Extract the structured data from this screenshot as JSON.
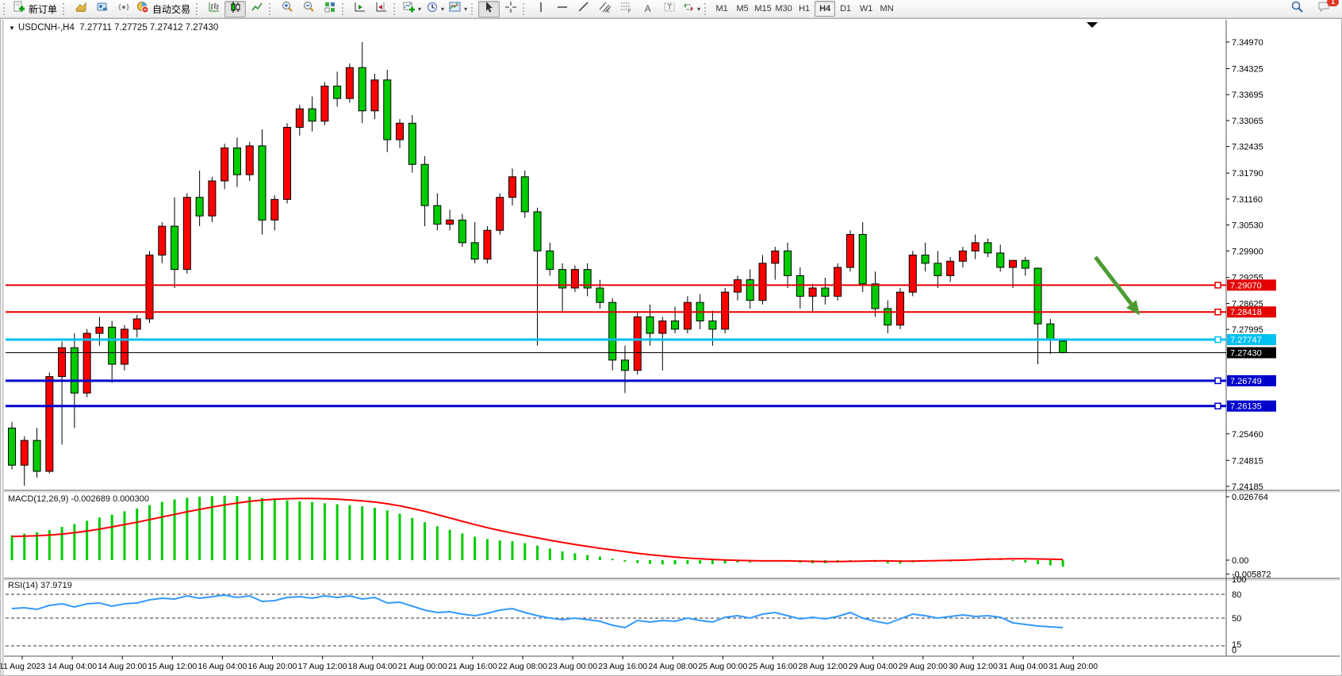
{
  "toolbar": {
    "new_order_label": "新订单",
    "auto_trading_label": "自动交易",
    "timeframes": [
      "M1",
      "M5",
      "M15",
      "M30",
      "H1",
      "H4",
      "D1",
      "W1",
      "MN"
    ],
    "active_timeframe": "H4",
    "notification_count": "1"
  },
  "chart": {
    "title_symbol": "USDCNH-,H4",
    "title_ohlc": "7.27711 7.27725 7.27412 7.27430",
    "macd_label": "MACD(12,26,9) -0.002689 0.000300",
    "rsi_label": "RSI(14) 37.9719"
  },
  "chart_data": {
    "type": "candlestick",
    "symbol": "USDCNH-",
    "period": "H4",
    "convention": "red-up-green-down",
    "current_ohlc": {
      "open": "7.27711",
      "high": "7.27725",
      "low": "7.27412",
      "close": "7.27430"
    },
    "price_axis_labels": [
      "7.34970",
      "7.34325",
      "7.33695",
      "7.33065",
      "7.32435",
      "7.31790",
      "7.31160",
      "7.30530",
      "7.29900",
      "7.29255",
      "7.28625",
      "7.27995",
      "7.25460",
      "7.24815",
      "7.24185"
    ],
    "price_axis_range": [
      7.24185,
      7.3497
    ],
    "time_labels": [
      "11 Aug 2023",
      "14 Aug 04:00",
      "14 Aug 20:00",
      "15 Aug 12:00",
      "16 Aug 04:00",
      "16 Aug 20:00",
      "17 Aug 12:00",
      "18 Aug 04:00",
      "21 Aug 00:00",
      "21 Aug 16:00",
      "22 Aug 08:00",
      "23 Aug 00:00",
      "23 Aug 16:00",
      "24 Aug 08:00",
      "25 Aug 00:00",
      "25 Aug 16:00",
      "28 Aug 12:00",
      "29 Aug 04:00",
      "29 Aug 20:00",
      "30 Aug 12:00",
      "31 Aug 04:00",
      "31 Aug 20:00"
    ],
    "candles": [
      [
        7.256,
        7.2575,
        7.246,
        7.247
      ],
      [
        7.247,
        7.254,
        7.242,
        7.253
      ],
      [
        7.253,
        7.256,
        7.244,
        7.2455
      ],
      [
        7.2455,
        7.2695,
        7.245,
        7.2685
      ],
      [
        7.2685,
        7.277,
        7.252,
        7.2755
      ],
      [
        7.2755,
        7.279,
        7.256,
        7.2645
      ],
      [
        7.2645,
        7.28,
        7.2635,
        7.279
      ],
      [
        7.279,
        7.283,
        7.276,
        7.2805
      ],
      [
        7.2805,
        7.282,
        7.267,
        7.2715
      ],
      [
        7.2715,
        7.281,
        7.27,
        7.28
      ],
      [
        7.28,
        7.2835,
        7.278,
        7.2825
      ],
      [
        7.2825,
        7.299,
        7.2815,
        7.298
      ],
      [
        7.298,
        7.306,
        7.296,
        7.305
      ],
      [
        7.305,
        7.312,
        7.29,
        7.2945
      ],
      [
        7.2945,
        7.313,
        7.2935,
        7.312
      ],
      [
        7.312,
        7.3185,
        7.305,
        7.3075
      ],
      [
        7.3075,
        7.317,
        7.306,
        7.316
      ],
      [
        7.316,
        7.325,
        7.314,
        7.324
      ],
      [
        7.324,
        7.3265,
        7.3145,
        7.3175
      ],
      [
        7.3175,
        7.3255,
        7.316,
        7.3245
      ],
      [
        7.3245,
        7.3285,
        7.303,
        7.3065
      ],
      [
        7.3065,
        7.3125,
        7.304,
        7.3115
      ],
      [
        7.3115,
        7.33,
        7.3105,
        7.329
      ],
      [
        7.329,
        7.3345,
        7.327,
        7.3335
      ],
      [
        7.3335,
        7.3365,
        7.328,
        7.3305
      ],
      [
        7.3305,
        7.34,
        7.3295,
        7.339
      ],
      [
        7.339,
        7.3425,
        7.334,
        7.336
      ],
      [
        7.336,
        7.3445,
        7.335,
        7.3435
      ],
      [
        7.3435,
        7.3497,
        7.33,
        7.333
      ],
      [
        7.333,
        7.342,
        7.331,
        7.3405
      ],
      [
        7.3405,
        7.343,
        7.323,
        7.326
      ],
      [
        7.326,
        7.331,
        7.324,
        7.33
      ],
      [
        7.33,
        7.332,
        7.318,
        7.32
      ],
      [
        7.32,
        7.322,
        7.305,
        7.31
      ],
      [
        7.31,
        7.313,
        7.304,
        7.3055
      ],
      [
        7.3055,
        7.309,
        7.304,
        7.3065
      ],
      [
        7.3065,
        7.308,
        7.3,
        7.301
      ],
      [
        7.301,
        7.306,
        7.296,
        7.297
      ],
      [
        7.297,
        7.305,
        7.296,
        7.304
      ],
      [
        7.304,
        7.313,
        7.303,
        7.312
      ],
      [
        7.312,
        7.319,
        7.31,
        7.317
      ],
      [
        7.317,
        7.3185,
        7.307,
        7.3085
      ],
      [
        7.3085,
        7.3095,
        7.276,
        7.299
      ],
      [
        7.299,
        7.301,
        7.293,
        7.2945
      ],
      [
        7.2945,
        7.296,
        7.284,
        7.29
      ],
      [
        7.29,
        7.2955,
        7.289,
        7.2945
      ],
      [
        7.2945,
        7.296,
        7.288,
        7.29
      ],
      [
        7.29,
        7.292,
        7.285,
        7.2865
      ],
      [
        7.2865,
        7.2875,
        7.27,
        7.2725
      ],
      [
        7.2725,
        7.276,
        7.2645,
        7.27
      ],
      [
        7.27,
        7.284,
        7.269,
        7.283
      ],
      [
        7.283,
        7.286,
        7.276,
        7.279
      ],
      [
        7.279,
        7.283,
        7.27,
        7.282
      ],
      [
        7.282,
        7.2855,
        7.279,
        7.28
      ],
      [
        7.28,
        7.288,
        7.279,
        7.2865
      ],
      [
        7.2865,
        7.2885,
        7.28,
        7.282
      ],
      [
        7.282,
        7.2845,
        7.276,
        7.28
      ],
      [
        7.28,
        7.29,
        7.279,
        7.289
      ],
      [
        7.289,
        7.293,
        7.287,
        7.292
      ],
      [
        7.292,
        7.2945,
        7.285,
        7.287
      ],
      [
        7.287,
        7.298,
        7.286,
        7.296
      ],
      [
        7.296,
        7.3,
        7.292,
        7.299
      ],
      [
        7.299,
        7.301,
        7.29,
        7.293
      ],
      [
        7.293,
        7.295,
        7.285,
        7.288
      ],
      [
        7.288,
        7.291,
        7.284,
        7.29
      ],
      [
        7.29,
        7.2925,
        7.286,
        7.288
      ],
      [
        7.288,
        7.296,
        7.287,
        7.295
      ],
      [
        7.295,
        7.304,
        7.294,
        7.303
      ],
      [
        7.303,
        7.306,
        7.289,
        7.291
      ],
      [
        7.291,
        7.294,
        7.283,
        7.285
      ],
      [
        7.285,
        7.287,
        7.279,
        7.281
      ],
      [
        7.281,
        7.29,
        7.28,
        7.289
      ],
      [
        7.289,
        7.299,
        7.288,
        7.298
      ],
      [
        7.298,
        7.301,
        7.294,
        7.296
      ],
      [
        7.296,
        7.299,
        7.29,
        7.293
      ],
      [
        7.293,
        7.2975,
        7.2915,
        7.2965
      ],
      [
        7.2965,
        7.3,
        7.295,
        7.299
      ],
      [
        7.299,
        7.303,
        7.297,
        7.301
      ],
      [
        7.301,
        7.302,
        7.2975,
        7.2985
      ],
      [
        7.2985,
        7.3005,
        7.294,
        7.295
      ],
      [
        7.295,
        7.2955,
        7.29,
        7.2967
      ],
      [
        7.2967,
        7.2975,
        7.293,
        7.2948
      ],
      [
        7.2948,
        7.295,
        7.2715,
        7.2813
      ],
      [
        7.2813,
        7.2825,
        7.274,
        7.2775
      ],
      [
        7.27711,
        7.27725,
        7.27412,
        7.2743
      ]
    ],
    "hlines": [
      {
        "price": 7.2907,
        "label": "7.29070",
        "color": "#e40000",
        "width": 2,
        "text": "#ffffff"
      },
      {
        "price": 7.28418,
        "label": "7.28418",
        "color": "#e40000",
        "width": 2,
        "text": "#ffffff"
      },
      {
        "price": 7.27747,
        "label": "7.27747",
        "color": "#00c0f0",
        "width": 3,
        "text": "#ffffff"
      },
      {
        "price": 7.2743,
        "label": "7.27430",
        "color": "#000000",
        "width": 1,
        "text": "#ffffff"
      },
      {
        "price": 7.26749,
        "label": "7.26749",
        "color": "#0000cc",
        "width": 3,
        "text": "#ffffff"
      },
      {
        "price": 7.26135,
        "label": "7.26135",
        "color": "#0000cc",
        "width": 3,
        "text": "#ffffff"
      }
    ],
    "arrow_annotation": {
      "from_index": 86.6,
      "from_price": 7.2975,
      "to_index": 90.0,
      "to_price": 7.284,
      "color": "#4c9b33"
    },
    "macd": {
      "params": "12,26,9",
      "current_macd": "-0.002689",
      "current_signal": "0.000300",
      "axis_labels": [
        "0.026764",
        "0.00",
        "-0.005872"
      ],
      "histogram": [
        0.0105,
        0.0112,
        0.0118,
        0.0127,
        0.014,
        0.0152,
        0.0166,
        0.018,
        0.0192,
        0.0206,
        0.0218,
        0.0232,
        0.0246,
        0.0256,
        0.0263,
        0.0268,
        0.027,
        0.0272,
        0.0271,
        0.0268,
        0.0262,
        0.0256,
        0.0252,
        0.0249,
        0.0245,
        0.024,
        0.0236,
        0.0232,
        0.0227,
        0.0221,
        0.021,
        0.0196,
        0.0178,
        0.016,
        0.0143,
        0.0128,
        0.0113,
        0.0099,
        0.0089,
        0.0083,
        0.008,
        0.0072,
        0.0061,
        0.0049,
        0.0037,
        0.0029,
        0.0022,
        0.0015,
        0.0006,
        -0.0006,
        -0.0012,
        -0.0016,
        -0.0018,
        -0.0018,
        -0.0016,
        -0.0015,
        -0.0017,
        -0.0014,
        -0.001,
        -0.001,
        -0.0006,
        -0.0001,
        -0.0004,
        -0.001,
        -0.0013,
        -0.0013,
        -0.001,
        -0.0004,
        -0.0001,
        -0.0008,
        -0.0014,
        -0.0015,
        -0.0009,
        -0.0002,
        -0.0004,
        -0.0006,
        -0.0004,
        0.0001,
        0.0004,
        0.0003,
        -0.0004,
        -0.001,
        -0.0017,
        -0.0022,
        -0.0027
      ],
      "signal": [
        0.01,
        0.0101,
        0.0103,
        0.0106,
        0.011,
        0.0116,
        0.0123,
        0.0131,
        0.014,
        0.015,
        0.016,
        0.0171,
        0.0182,
        0.0193,
        0.0204,
        0.0214,
        0.0224,
        0.0233,
        0.0241,
        0.0248,
        0.0253,
        0.0257,
        0.0259,
        0.026,
        0.026,
        0.0259,
        0.0257,
        0.0254,
        0.025,
        0.0245,
        0.0238,
        0.0229,
        0.0218,
        0.0206,
        0.0192,
        0.0178,
        0.0164,
        0.015,
        0.0137,
        0.0125,
        0.0114,
        0.0104,
        0.0094,
        0.0084,
        0.0075,
        0.0066,
        0.0058,
        0.005,
        0.0043,
        0.0036,
        0.0029,
        0.0023,
        0.0018,
        0.0013,
        0.0009,
        0.0006,
        0.0003,
        0.0001,
        -0.0001,
        -0.0002,
        -0.0003,
        -0.0003,
        -0.0003,
        -0.0004,
        -0.0005,
        -0.0006,
        -0.0006,
        -0.0005,
        -0.0004,
        -0.0003,
        -0.0003,
        -0.0004,
        -0.0004,
        -0.0003,
        -0.0002,
        -0.0001,
        0.0,
        0.0002,
        0.0004,
        0.0005,
        0.0006,
        0.0006,
        0.0005,
        0.0004,
        0.0003
      ],
      "histogram_color": "#00cc00",
      "signal_color": "#ff0000"
    },
    "rsi": {
      "period": "14",
      "current": "37.9719",
      "levels": [
        80,
        50,
        15
      ],
      "axis_labels": [
        "100",
        "80",
        "50",
        "15",
        "0"
      ],
      "values": [
        62,
        63,
        61,
        66,
        68,
        64,
        68,
        69,
        65,
        68,
        69,
        73,
        75,
        74,
        78,
        75,
        77,
        79,
        76,
        78,
        71,
        72,
        76,
        77,
        75,
        78,
        76,
        78,
        74,
        76,
        69,
        70,
        65,
        60,
        57,
        58,
        55,
        53,
        56,
        60,
        62,
        57,
        53,
        50,
        48,
        50,
        48,
        46,
        41,
        38,
        47,
        45,
        47,
        46,
        50,
        47,
        45,
        51,
        53,
        50,
        55,
        57,
        53,
        49,
        51,
        49,
        52,
        57,
        50,
        46,
        43,
        49,
        55,
        53,
        50,
        52,
        54,
        52,
        53,
        51,
        44,
        42,
        40,
        39,
        37.97
      ],
      "line_color": "#3399ff"
    },
    "colors": {
      "up_candle": "#ff0000",
      "down_candle": "#00cc00",
      "wick": "#000000",
      "axis_text": "#000000"
    }
  }
}
